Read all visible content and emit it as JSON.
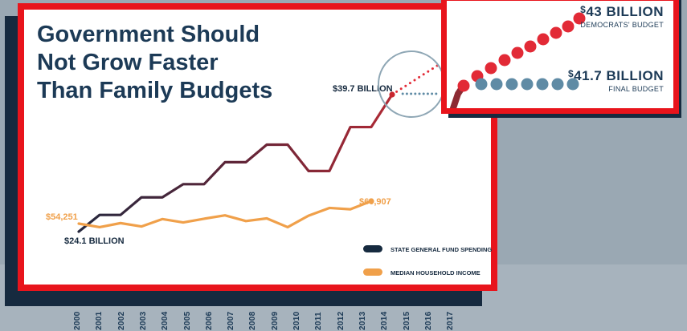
{
  "headline": {
    "line1": "Government Should",
    "line2": "Not Grow Faster",
    "line3": "Than Family Budgets"
  },
  "chart_data": {
    "type": "line",
    "x": [
      "2000",
      "2001",
      "2002",
      "2003",
      "2004",
      "2005",
      "2006",
      "2007",
      "2008",
      "2009",
      "2010",
      "2011",
      "2012",
      "2013",
      "2014",
      "2015",
      "2016",
      "2017"
    ],
    "series": [
      {
        "name": "STATE GENERAL FUND SPENDING",
        "color": "#7a2233",
        "values": [
          24.1,
          26.0,
          26.0,
          28.0,
          28.0,
          29.5,
          29.5,
          32.0,
          32.0,
          34.0,
          34.0,
          31.0,
          31.0,
          36.0,
          36.0,
          39.7,
          null,
          null
        ],
        "start_label": "$24.1 BILLION",
        "end_label": "$39.7 BILLION"
      },
      {
        "name": "MEDIAN HOUSEHOLD INCOME",
        "color": "#f0a04a",
        "values": [
          54251,
          53200,
          54400,
          53400,
          55600,
          54600,
          55700,
          56700,
          55000,
          55800,
          53200,
          56600,
          58900,
          58500,
          60907,
          null,
          null,
          null
        ],
        "start_label": "$54,251",
        "end_label": "$60,907"
      }
    ],
    "projection": {
      "democrats": {
        "value_label": "$43 BILLION",
        "amount": "43",
        "unit": "BILLION",
        "caption": "DEMOCRATS' BUDGET",
        "color": "#e22a36"
      },
      "final": {
        "value_label": "$41.7 BILLION",
        "amount": "41.7",
        "unit": "BILLION",
        "caption": "FINAL BUDGET",
        "color": "#5f8ba5"
      }
    },
    "legend": {
      "placement": "bottom-right",
      "items": [
        {
          "label": "STATE GENERAL FUND SPENDING",
          "color": "#162a3f"
        },
        {
          "label": "MEDIAN HOUSEHOLD INCOME",
          "color": "#f0a04a"
        }
      ]
    },
    "xlabel": "",
    "ylabel": ""
  },
  "colors": {
    "accent": "#e8141c",
    "navy": "#162a3f",
    "spending_dark": "#3d1f33",
    "spending_red": "#a02a33",
    "income": "#f0a04a"
  }
}
